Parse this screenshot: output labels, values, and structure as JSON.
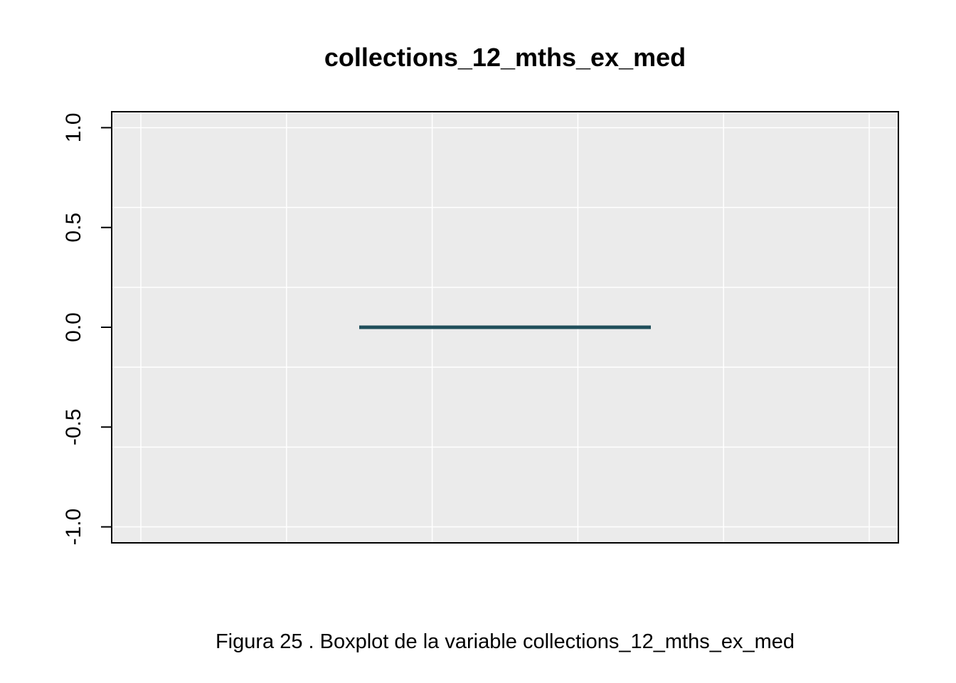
{
  "chart_data": {
    "type": "box",
    "title": "collections_12_mths_ex_med",
    "caption": "Figura  25 . Boxplot de la variable  collections_12_mths_ex_med",
    "ylim": [
      -1.08,
      1.08
    ],
    "y_ticks": [
      -1.0,
      -0.5,
      0.0,
      0.5,
      1.0
    ],
    "y_tick_labels": [
      "-1.0",
      "-0.5",
      "0.0",
      "0.5",
      "1.0"
    ],
    "y_grid_values": [
      -1.0,
      -0.6,
      -0.2,
      0.2,
      0.6,
      1.0
    ],
    "x_grid_count": 6,
    "grid": true,
    "box": {
      "min": 0,
      "q1": 0,
      "median": 0,
      "q3": 0,
      "max": 0
    },
    "colors": {
      "panel_bg": "#ebebeb",
      "grid": "#ffffff",
      "median": "#1f4e5a",
      "axis": "#000000"
    }
  }
}
